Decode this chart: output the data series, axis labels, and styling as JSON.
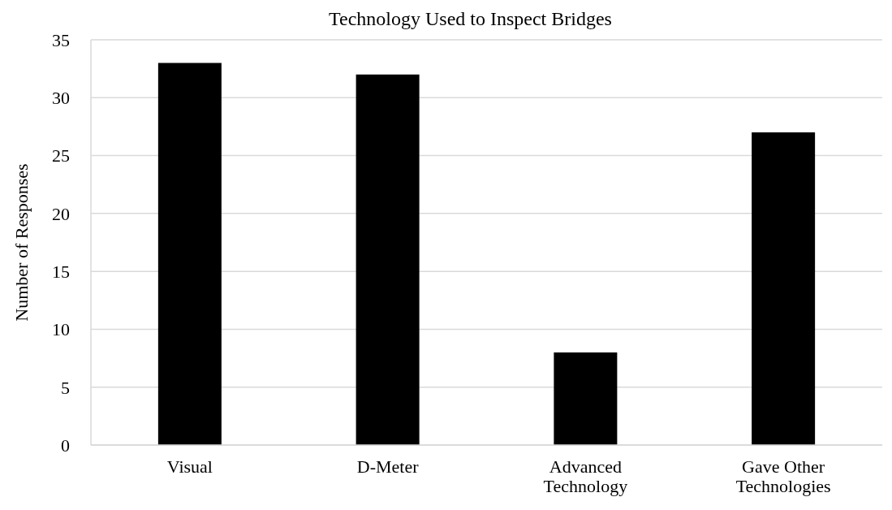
{
  "chart_data": {
    "type": "bar",
    "title": "Technology Used to Inspect Bridges",
    "ylabel": "Number of Responses",
    "categories": [
      "Visual",
      "D-Meter",
      "Advanced Technology",
      "Gave Other Technologies"
    ],
    "values": [
      33,
      32,
      8,
      27
    ],
    "color": "#000000",
    "ylim": [
      0,
      35
    ],
    "yticks": [
      0,
      5,
      10,
      15,
      20,
      25,
      30,
      35
    ],
    "grid": "y"
  }
}
